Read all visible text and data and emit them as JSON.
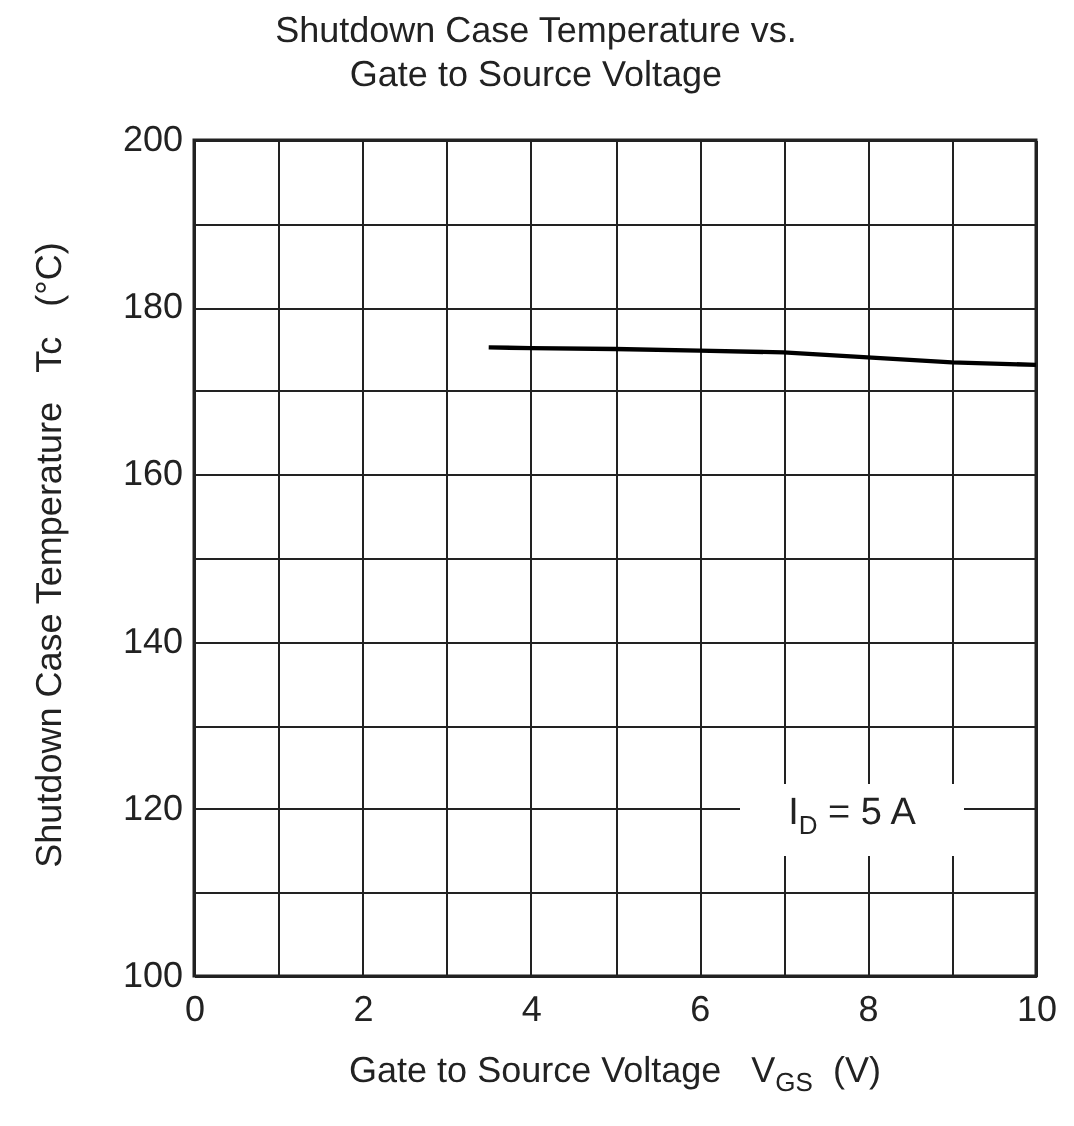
{
  "chart_data": {
    "type": "line",
    "title": "Shutdown Case Temperature vs. Gate to Source Voltage",
    "xlabel": "Gate to Source Voltage   V$_{GS}$  (V)",
    "ylabel": "Shutdown Case Temperature   Tc   (°C)",
    "annotations": [
      "I$_{D}$ = 5 A"
    ],
    "series": [
      {
        "color": "#000000",
        "x": [
          3.5,
          4,
          5,
          6,
          7,
          8,
          9,
          10
        ],
        "values": [
          175.2,
          175.1,
          175.0,
          174.8,
          174.6,
          174.0,
          173.4,
          173.1
        ]
      }
    ],
    "xlim": [
      0,
      10
    ],
    "ylim": [
      100,
      200
    ],
    "xticks": [
      0,
      {
        "value": 1,
        "label": null
      },
      2,
      {
        "value": 3,
        "label": null
      },
      4,
      {
        "value": 5,
        "label": null
      },
      6,
      {
        "value": 7,
        "label": null
      },
      8,
      {
        "value": 9,
        "label": null
      },
      10
    ],
    "yticks": [
      100,
      {
        "value": 110,
        "label": null
      },
      120,
      {
        "value": 130,
        "label": null
      },
      140,
      {
        "value": 150,
        "label": null
      },
      160,
      {
        "value": 170,
        "label": null
      },
      180,
      {
        "value": 190,
        "label": null
      },
      200
    ],
    "grid": true,
    "marker": "none",
    "line_style": "solid"
  }
}
